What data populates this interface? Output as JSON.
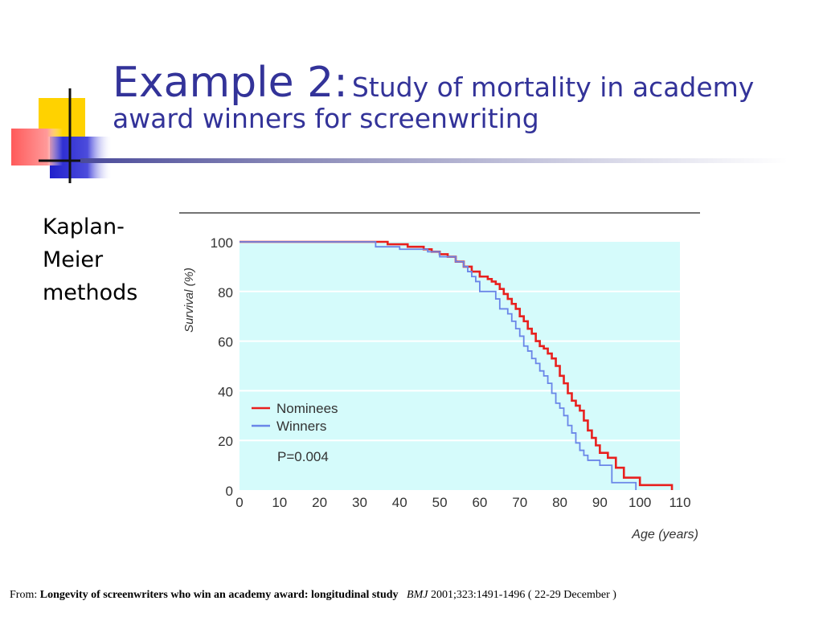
{
  "slide": {
    "title_main": "Example 2:",
    "title_sub": "Study of mortality in academy award winners for screenwriting",
    "side_label": "Kaplan-Meier methods"
  },
  "source": {
    "prefix": "From:",
    "title": "Longevity of screenwriters who win an academy award: longitudinal study",
    "journal": "BMJ",
    "citation": "2001;323:1491-1496 ( 22-29 December )"
  },
  "colors": {
    "title": "#333399",
    "plot_background": "#d5fbfb",
    "nominees": "#e8201e",
    "winners": "#6a86e8"
  },
  "chart_data": {
    "type": "line",
    "xlabel": "Age (years)",
    "ylabel": "Survival (%)",
    "xlim": [
      0,
      110
    ],
    "ylim": [
      0,
      100
    ],
    "xticks": [
      "0",
      "10",
      "20",
      "30",
      "40",
      "50",
      "60",
      "70",
      "80",
      "90",
      "100",
      "110"
    ],
    "yticks": [
      "0",
      "20",
      "40",
      "60",
      "80",
      "100"
    ],
    "grid": "horizontal",
    "legend_position": "bottom-left",
    "annotation": "P=0.004",
    "series": [
      {
        "name": "Nominees",
        "color": "#e8201e",
        "step": true,
        "x": [
          0,
          37,
          42,
          46,
          48,
          50,
          52,
          54,
          56,
          58,
          60,
          62,
          63,
          64,
          65,
          66,
          67,
          68,
          69,
          70,
          71,
          72,
          73,
          74,
          75,
          76,
          77,
          78,
          79,
          80,
          81,
          82,
          83,
          84,
          85,
          86,
          87,
          88,
          89,
          90,
          92,
          94,
          96,
          100,
          108
        ],
        "y": [
          100,
          99,
          98,
          97,
          96,
          95,
          94,
          92,
          90,
          88,
          86,
          85,
          84,
          83,
          81,
          79,
          77,
          75,
          73,
          70,
          68,
          65,
          63,
          60,
          58,
          57,
          55,
          53,
          50,
          46,
          43,
          39,
          36,
          34,
          32,
          28,
          24,
          21,
          18,
          15,
          13,
          9,
          5,
          2,
          0
        ]
      },
      {
        "name": "Winners",
        "color": "#6a86e8",
        "step": true,
        "x": [
          0,
          34,
          40,
          47,
          50,
          54,
          56,
          57,
          58,
          59,
          60,
          64,
          65,
          67,
          68,
          69,
          70,
          71,
          72,
          73,
          74,
          75,
          76,
          77,
          78,
          79,
          80,
          81,
          82,
          83,
          84,
          85,
          86,
          87,
          90,
          93,
          99
        ],
        "y": [
          100,
          98,
          97,
          96,
          94,
          92,
          90,
          88,
          86,
          84,
          80,
          77,
          73,
          71,
          68,
          65,
          62,
          58,
          56,
          53,
          51,
          48,
          46,
          43,
          39,
          35,
          33,
          30,
          26,
          23,
          19,
          16,
          14,
          12,
          10,
          3,
          0
        ]
      }
    ]
  }
}
